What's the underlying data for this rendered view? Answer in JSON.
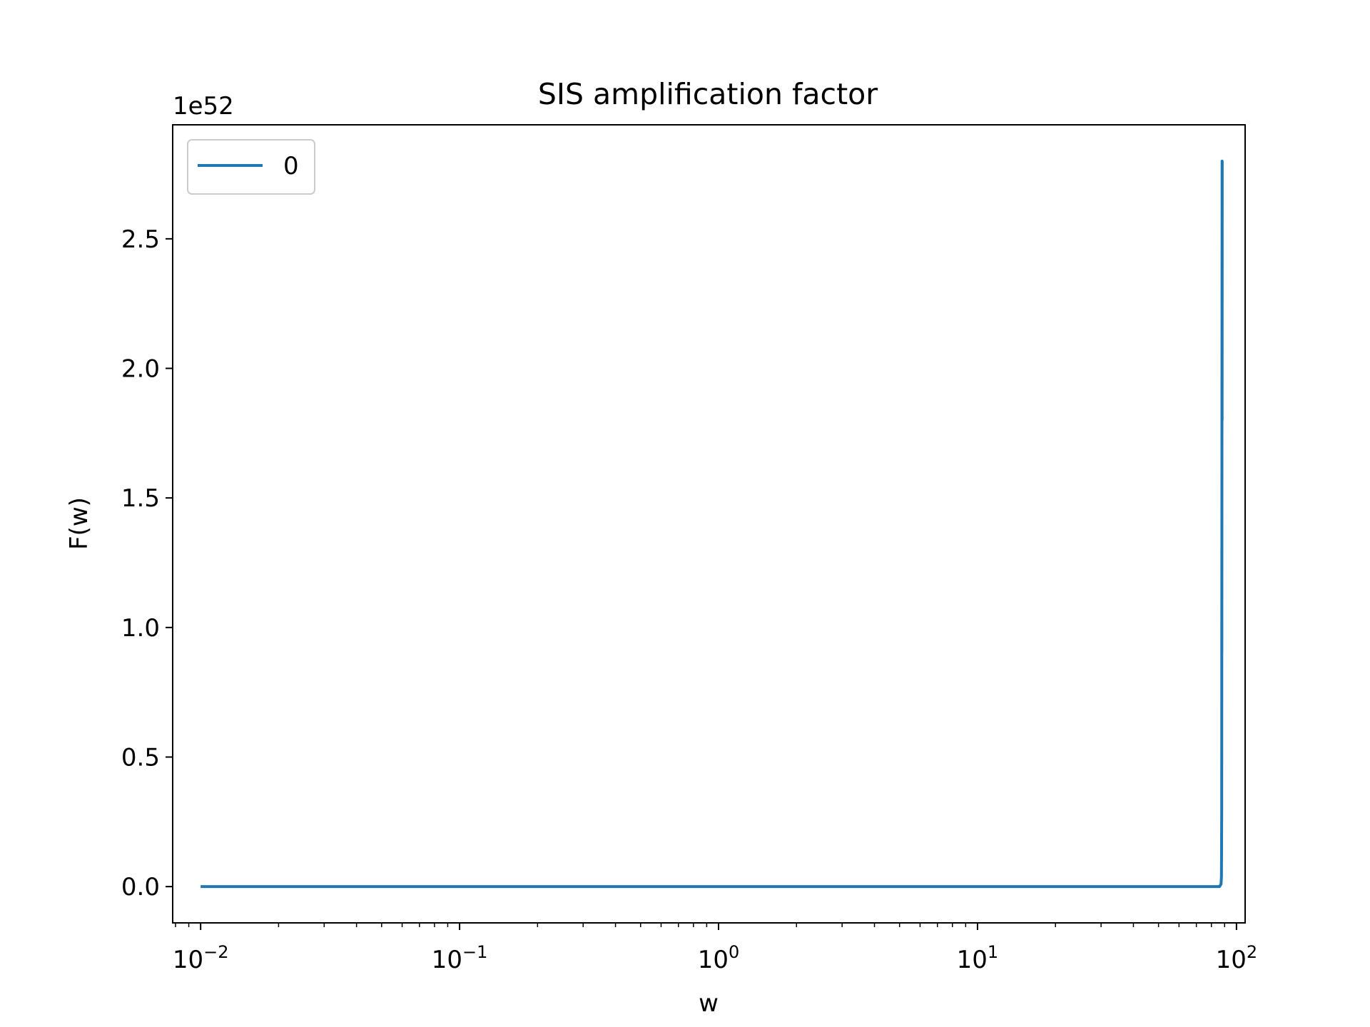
{
  "chart_data": {
    "type": "line",
    "title": "SIS amplification factor",
    "xlabel": "w",
    "ylabel": "F(w)",
    "xscale": "log",
    "xlim": [
      0.0078,
      108
    ],
    "ylim": [
      -1.4e+51,
      2.94e+52
    ],
    "y_offset_label": "1e52",
    "x_ticks": [
      {
        "value": 0.01,
        "base": "10",
        "exp": "−2"
      },
      {
        "value": 0.1,
        "base": "10",
        "exp": "−1"
      },
      {
        "value": 1,
        "base": "10",
        "exp": "0"
      },
      {
        "value": 10,
        "base": "10",
        "exp": "1"
      },
      {
        "value": 100,
        "base": "10",
        "exp": "2"
      }
    ],
    "y_ticks": [
      {
        "value": 0,
        "label": "0.0"
      },
      {
        "value": 5e+51,
        "label": "0.5"
      },
      {
        "value": 1e+52,
        "label": "1.0"
      },
      {
        "value": 1.5e+52,
        "label": "1.5"
      },
      {
        "value": 2e+52,
        "label": "2.0"
      },
      {
        "value": 2.5e+52,
        "label": "2.5"
      }
    ],
    "grid": false,
    "legend_position": "top-left",
    "series": [
      {
        "name": "0",
        "color": "#1f77b4",
        "x": [
          0.01,
          0.1,
          1,
          10,
          80,
          86,
          87.2,
          87.5,
          87.7,
          87.8,
          87.8,
          87.9,
          88.0,
          88.0,
          88.1
        ],
        "y": [
          0,
          0,
          0,
          0,
          0,
          0,
          1e+50,
          4e+50,
          3e+51,
          1.3e+52,
          9e+51,
          2e+52,
          2.8e+52,
          1.8e+52,
          2.8e+52
        ]
      }
    ]
  }
}
